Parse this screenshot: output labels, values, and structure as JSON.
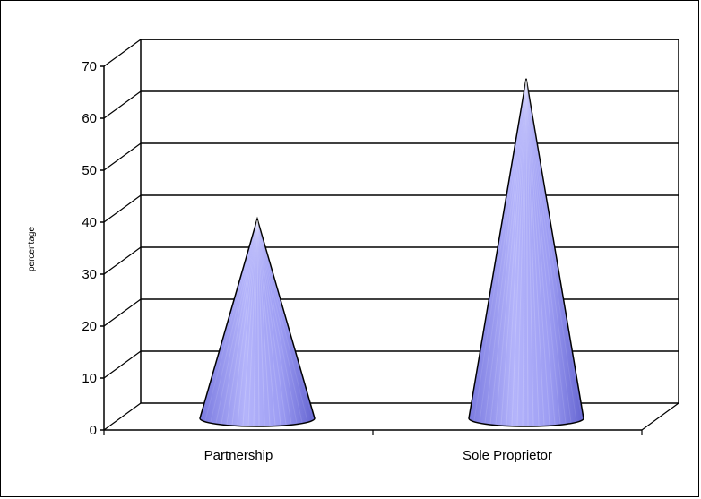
{
  "chart_data": {
    "type": "bar",
    "style": "3d-cone",
    "categories": [
      "Partnership",
      "Sole Proprietor"
    ],
    "values": [
      39,
      66
    ],
    "title": "",
    "xlabel": "",
    "ylabel": "percentage",
    "ylim": [
      0,
      70
    ],
    "yticks": [
      "0",
      "10",
      "20",
      "30",
      "40",
      "50",
      "60",
      "70"
    ],
    "grid": true,
    "legend": "none",
    "colors": {
      "cone": "#9b9bf0",
      "cone_dark": "#6a6ad8",
      "cone_light": "#d6d6ff",
      "grid": "#000000"
    }
  }
}
